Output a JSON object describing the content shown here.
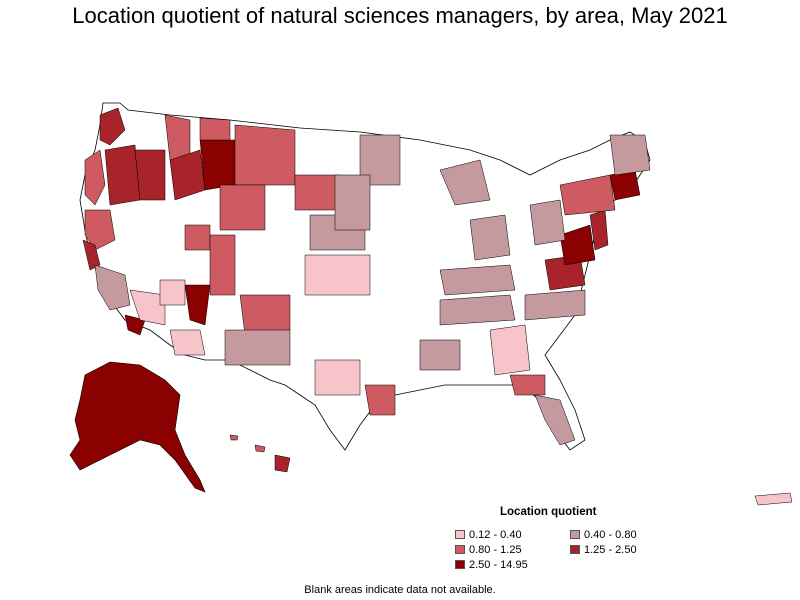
{
  "title": "Location quotient of natural sciences managers, by area, May 2021",
  "legend": {
    "title": "Location quotient",
    "items": [
      {
        "label": "0.12 - 0.40",
        "color": "#f7c5c9"
      },
      {
        "label": "0.40 - 0.80",
        "color": "#c49a9e"
      },
      {
        "label": "0.80 - 1.25",
        "color": "#cd5b61"
      },
      {
        "label": "1.25 - 2.50",
        "color": "#a8232a"
      },
      {
        "label": "2.50 - 14.95",
        "color": "#8b0000"
      }
    ]
  },
  "footnote": "Blank areas indicate data not available.",
  "colors": {
    "blank": "#ffffff",
    "border": "#000000"
  }
}
